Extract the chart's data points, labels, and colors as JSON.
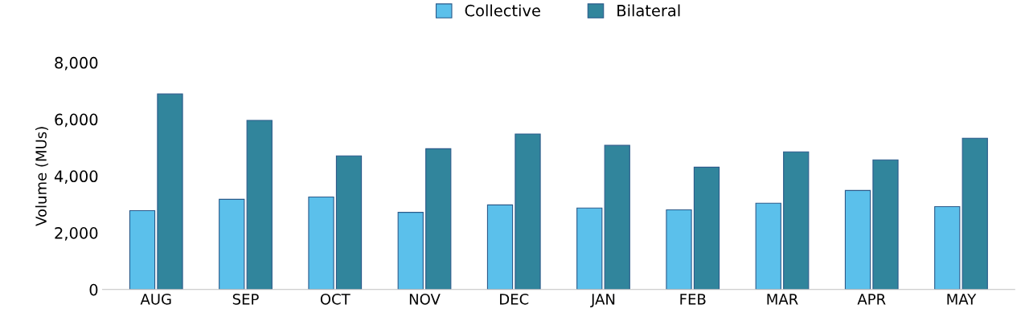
{
  "chart_data": {
    "type": "bar",
    "ylabel": "Volume (MUs)",
    "categories": [
      "AUG",
      "SEP",
      "OCT",
      "NOV",
      "DEC",
      "JAN",
      "FEB",
      "MAR",
      "APR",
      "MAY"
    ],
    "series": [
      {
        "name": "Collective",
        "color": "#5bc0eb",
        "values": [
          2780,
          3180,
          3260,
          2720,
          2980,
          2870,
          2810,
          3040,
          3490,
          2920
        ]
      },
      {
        "name": "Bilateral",
        "color": "#31859c",
        "values": [
          6890,
          5960,
          4710,
          4960,
          5480,
          5080,
          4310,
          4850,
          4570,
          5330
        ]
      }
    ],
    "ylim": [
      0,
      8000
    ],
    "yticks": [
      {
        "value": 0,
        "label": "0"
      },
      {
        "value": 2000,
        "label": "2,000"
      },
      {
        "value": 4000,
        "label": "4,000"
      },
      {
        "value": 6000,
        "label": "6,000"
      },
      {
        "value": 8000,
        "label": "8,000"
      }
    ],
    "grid": false,
    "legend": "top"
  }
}
